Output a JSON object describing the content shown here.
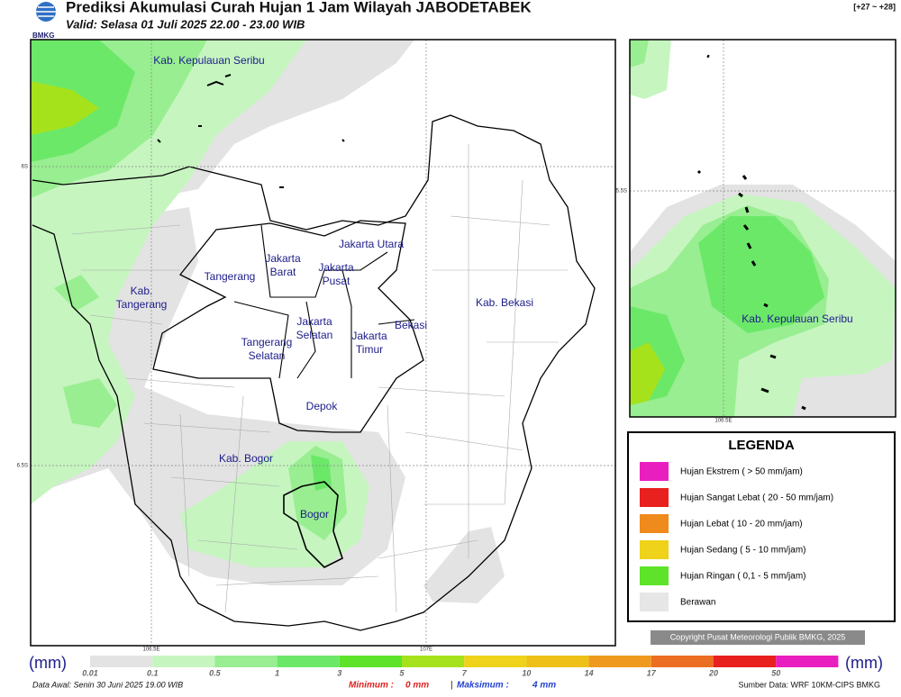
{
  "header": {
    "logo": "BMKG",
    "title": "Prediksi Akumulasi Curah Hujan 1 Jam Wilayah JABODETABEK",
    "valid": "Valid: Selasa 01 Juli 2025 22.00 - 23.00 WIB",
    "range": "[+27 ~ +28]"
  },
  "map": {
    "regions": [
      [
        "Kab. Kepulauan Seribu"
      ],
      [
        "Jakarta Utara"
      ],
      [
        "Jakarta",
        "Barat"
      ],
      [
        "Jakarta",
        "Pusat"
      ],
      [
        "Tangerang"
      ],
      [
        "Kab.",
        "Tangerang"
      ],
      [
        "Jakarta",
        "Selatan"
      ],
      [
        "Jakarta",
        "Timur"
      ],
      [
        "Bekasi"
      ],
      [
        "Kab. Bekasi"
      ],
      [
        "Tangerang",
        "Selatan"
      ],
      [
        "Depok"
      ],
      [
        "Kab. Bogor"
      ],
      [
        "Bogor"
      ]
    ],
    "lat_labels": [
      "6S",
      "6.5S"
    ],
    "lon_labels": [
      "106.5E",
      "107E"
    ],
    "inset_regions": [
      [
        "Kab. Kepulauan Seribu"
      ]
    ],
    "inset_lat_labels": [
      "5.5S"
    ],
    "inset_lon_labels": [
      "106.5E"
    ]
  },
  "legend": {
    "title": "LEGENDA",
    "items": [
      {
        "label": "Hujan Ekstrem ( > 50 mm/jam)",
        "color": "#e81fbe"
      },
      {
        "label": "Hujan Sangat Lebat ( 20 - 50 mm/jam)",
        "color": "#e8201e"
      },
      {
        "label": "Hujan Lebat ( 10 - 20 mm/jam)",
        "color": "#ef8a1c"
      },
      {
        "label": "Hujan Sedang ( 5 - 10 mm/jam)",
        "color": "#efd21a"
      },
      {
        "label": "Hujan Ringan ( 0,1 - 5 mm/jam)",
        "color": "#5ee32a"
      },
      {
        "label": "Berawan",
        "color": "#e6e6e6"
      }
    ]
  },
  "copyright": "Copyright Pusat Meteorologi Publik BMKG, 2025",
  "colorbar": {
    "unit": "(mm)",
    "ticks": [
      0.01,
      0.1,
      0.5,
      1,
      3,
      5,
      7,
      10,
      14,
      17,
      20,
      50
    ],
    "colors": [
      "#e3e3e3",
      "#c6f5c0",
      "#98ee90",
      "#6be868",
      "#5ee32a",
      "#a6e21c",
      "#efd21a",
      "#eec018",
      "#ef9a1e",
      "#ec6e22",
      "#e8201e",
      "#e81fbe"
    ]
  },
  "footer": {
    "data_awal": "Data Awal: Senin 30 Juni 2025 19.00 WIB",
    "min_label": "Minimum :",
    "min_value": "0 mm",
    "separator": "|",
    "max_label": "Maksimum :",
    "max_value": "4 mm",
    "source": "Sumber Data: WRF 10KM-CIPS BMKG"
  }
}
